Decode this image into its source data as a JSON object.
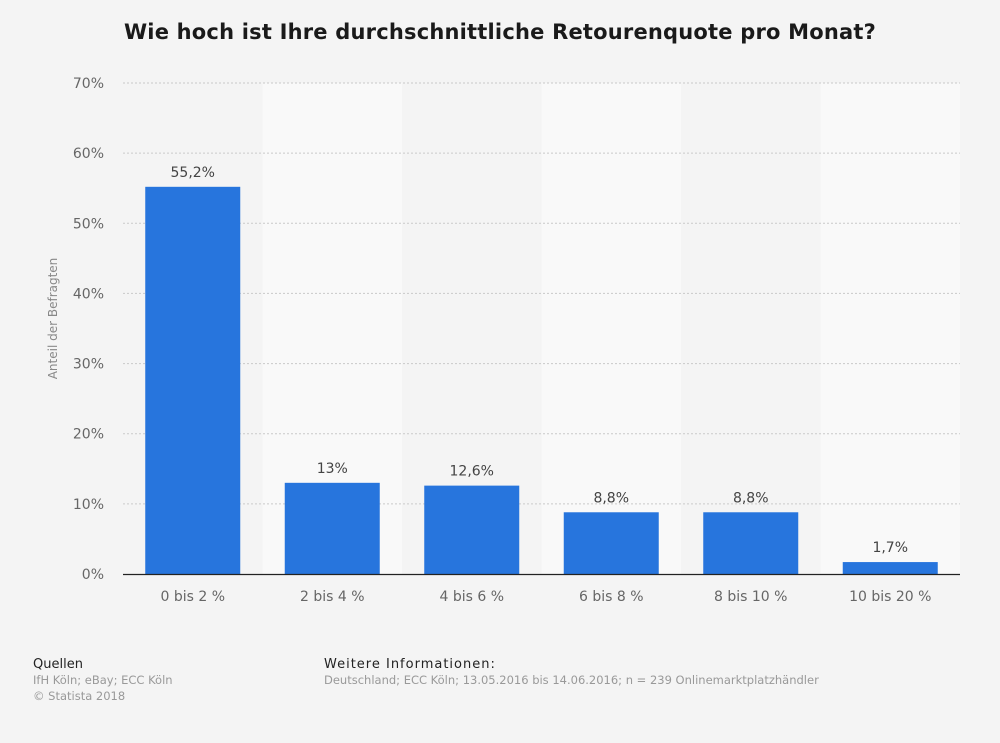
{
  "chart_data": {
    "type": "bar",
    "title": "Wie hoch ist Ihre durchschnittliche Retourenquote pro Monat?",
    "ylabel": "Anteil der Befragten",
    "xlabel": "",
    "categories": [
      "0 bis 2 %",
      "2 bis 4 %",
      "4 bis 6 %",
      "6 bis 8 %",
      "8 bis 10 %",
      "10 bis 20 %"
    ],
    "values": [
      55.2,
      13,
      12.6,
      8.8,
      8.8,
      1.7
    ],
    "value_labels": [
      "55,2%",
      "13%",
      "12,6%",
      "8,8%",
      "8,8%",
      "1,7%"
    ],
    "ylim": [
      0,
      70
    ],
    "yticks": [
      0,
      10,
      20,
      30,
      40,
      50,
      60,
      70
    ],
    "ytick_labels": [
      "0%",
      "10%",
      "20%",
      "30%",
      "40%",
      "50%",
      "60%",
      "70%"
    ],
    "bar_color": "#2775dd",
    "grid": true,
    "legend": "none"
  },
  "footer": {
    "sources_heading": "Quellen",
    "sources_line1": "IfH Köln; eBay; ECC Köln",
    "sources_line2": "© Statista 2018",
    "info_heading": "Weitere Informationen:",
    "info_text": "Deutschland; ECC Köln; 13.05.2016 bis 14.06.2016; n = 239 Onlinemarktplatzhändler"
  }
}
